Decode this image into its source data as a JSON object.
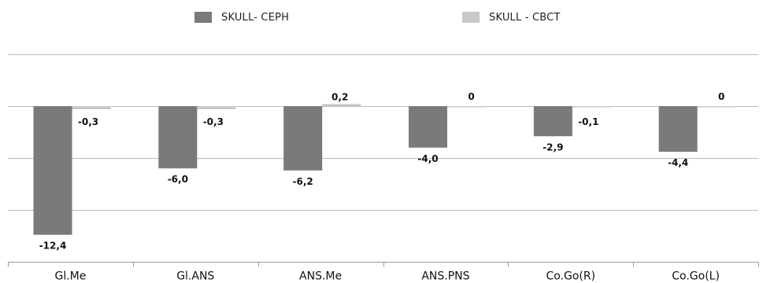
{
  "chart_data": {
    "type": "bar",
    "categories": [
      "Gl.Me",
      "Gl.ANS",
      "ANS.Me",
      "ANS.PNS",
      "Co.Go(R)",
      "Co.Go(L)"
    ],
    "series": [
      {
        "name": "SKULL- CEPH",
        "values": [
          -12.4,
          -6.0,
          -6.2,
          -4.0,
          -2.9,
          -4.4
        ],
        "labels": [
          "-12,4",
          "-6,0",
          "-6,2",
          "-4,0",
          "-2,9",
          "-4,4"
        ],
        "color": "#7a7a7a"
      },
      {
        "name": "SKULL - CBCT",
        "values": [
          -0.3,
          -0.3,
          0.2,
          0,
          -0.1,
          0
        ],
        "labels": [
          "-0,3",
          "-0,3",
          "0,2",
          "0",
          "-0,1",
          "0"
        ],
        "color": "#c8c8c8"
      }
    ],
    "ylim": [
      -15,
      5
    ],
    "gridlines": [
      5,
      0,
      -5,
      -10,
      -15
    ],
    "grid": true,
    "legend_position": "top-center"
  }
}
